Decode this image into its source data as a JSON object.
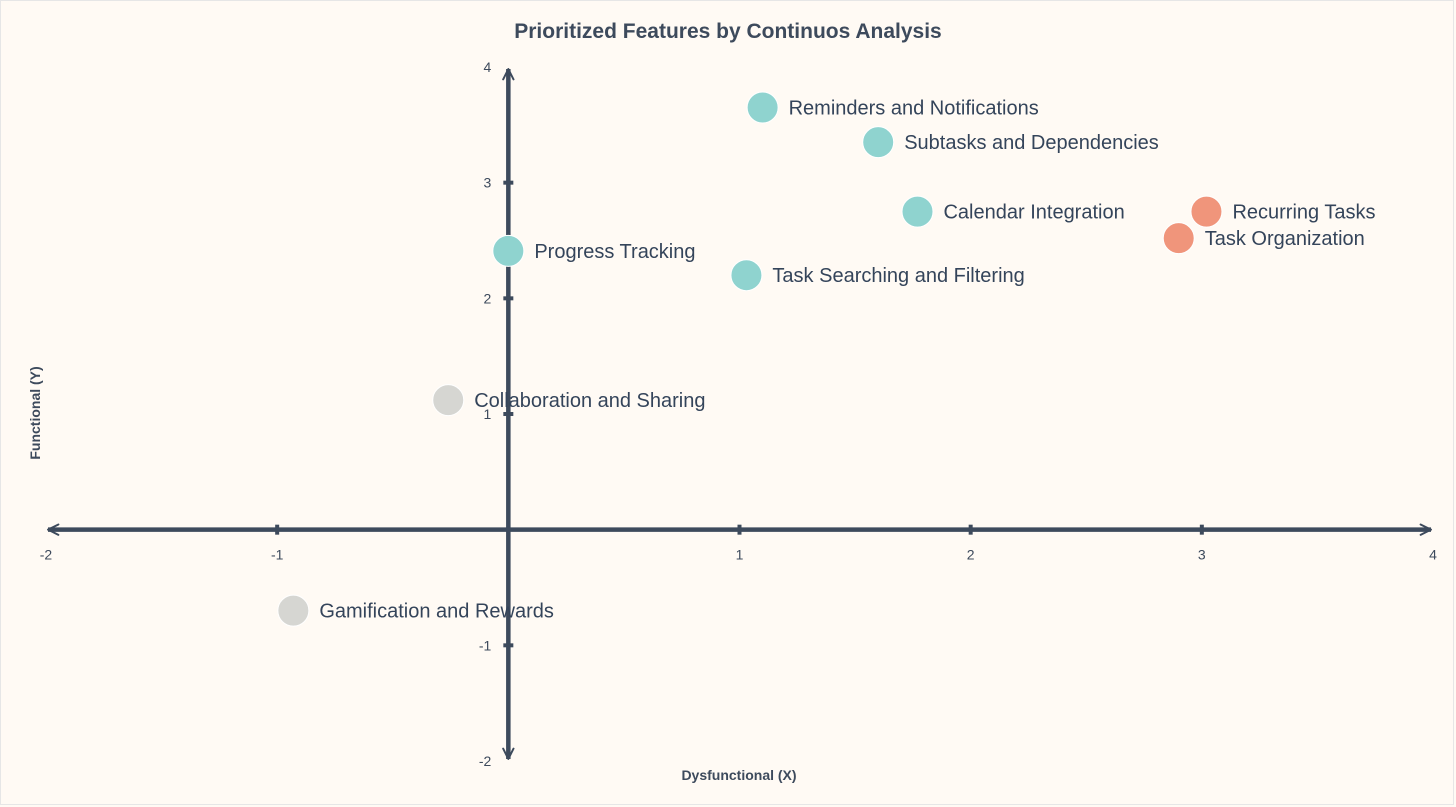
{
  "chart_data": {
    "type": "scatter",
    "title": "Prioritized Features by Continuos Analysis",
    "xlabel": "Dysfunctional (X)",
    "ylabel": "Functional (Y)",
    "xlim": [
      -2,
      4
    ],
    "ylim": [
      -2,
      4
    ],
    "xticks": [
      -2,
      -1,
      1,
      2,
      3,
      4
    ],
    "yticks": [
      4,
      3,
      2,
      1,
      -1,
      -2
    ],
    "grid": false,
    "colors": {
      "axis": "#3d4a5c",
      "teal": "#8fd3cf",
      "salmon": "#f0957b",
      "grey": "#d6d6d2"
    },
    "points": [
      {
        "label": "Reminders and Notifications",
        "x": 1.1,
        "y": 3.65,
        "color": "teal"
      },
      {
        "label": "Subtasks and Dependencies",
        "x": 1.6,
        "y": 3.35,
        "color": "teal"
      },
      {
        "label": "Calendar Integration",
        "x": 1.77,
        "y": 2.75,
        "color": "teal"
      },
      {
        "label": "Recurring Tasks",
        "x": 3.02,
        "y": 2.75,
        "color": "salmon"
      },
      {
        "label": "Task Organization",
        "x": 2.9,
        "y": 2.52,
        "color": "salmon"
      },
      {
        "label": "Progress Tracking",
        "x": 0.0,
        "y": 2.41,
        "color": "teal"
      },
      {
        "label": "Task Searching and Filtering",
        "x": 1.03,
        "y": 2.2,
        "color": "teal"
      },
      {
        "label": "Collaboration and Sharing",
        "x": -0.26,
        "y": 1.12,
        "color": "grey"
      },
      {
        "label": "Gamification and Rewards",
        "x": -0.93,
        "y": -0.7,
        "color": "grey"
      }
    ]
  }
}
